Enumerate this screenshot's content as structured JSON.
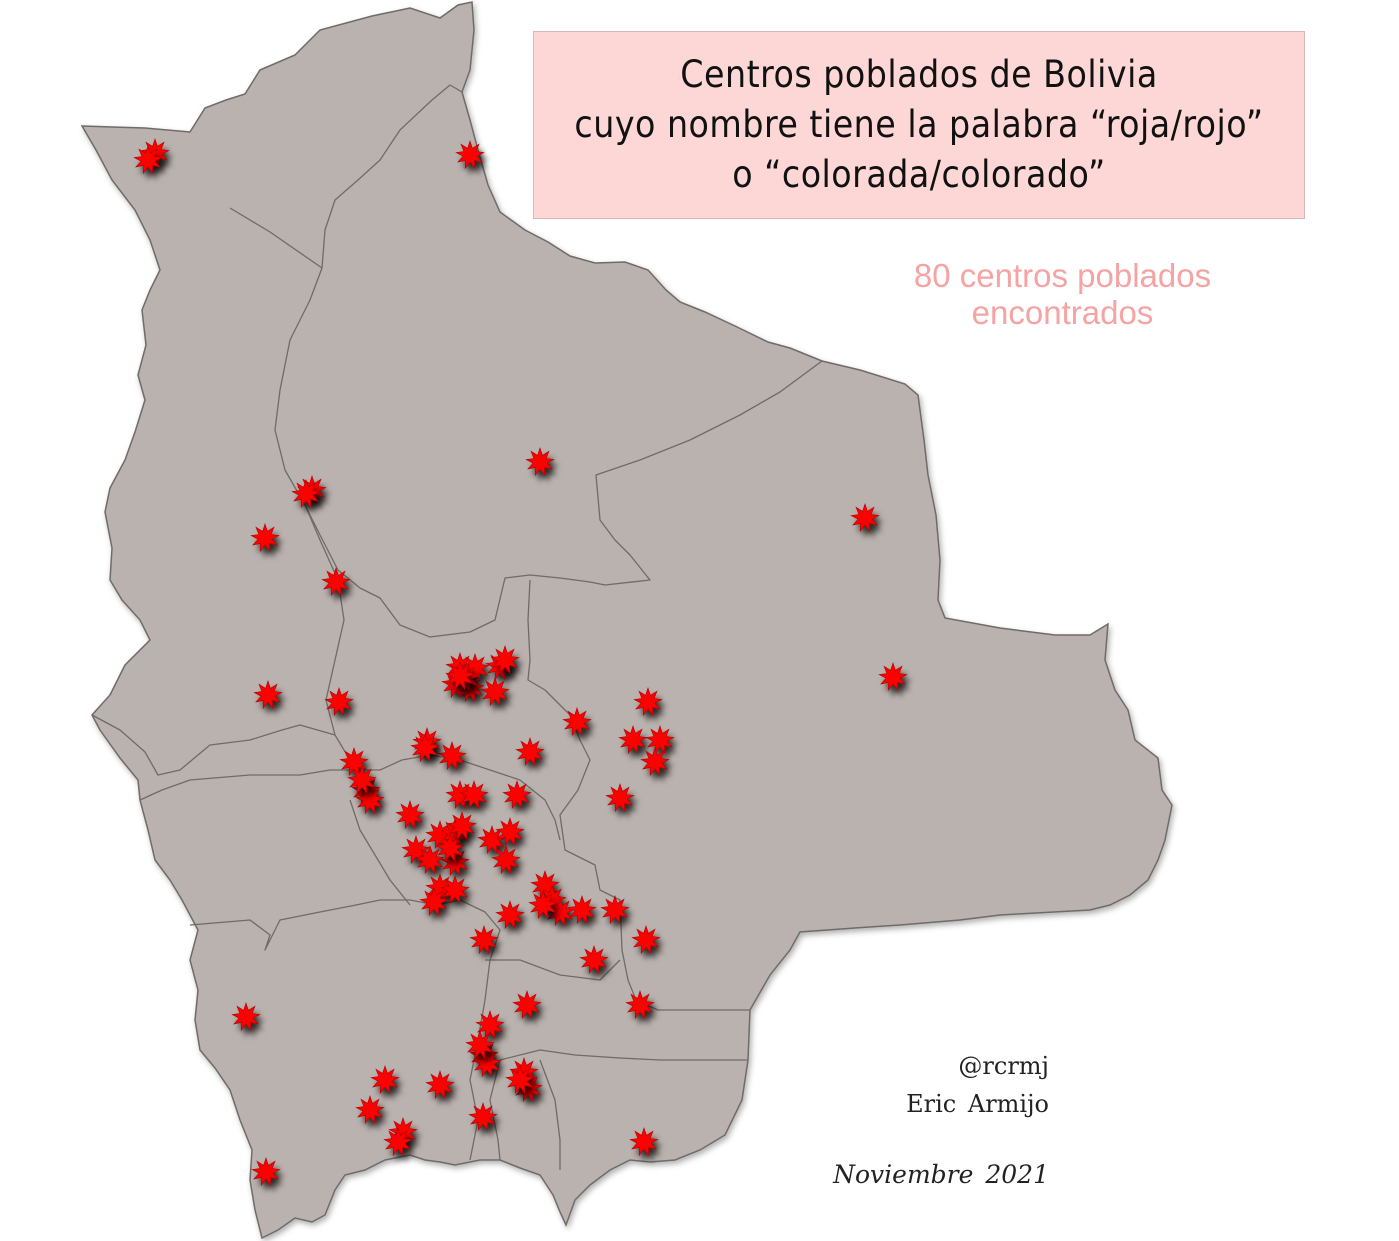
{
  "title": {
    "line1": "Centros poblados de Bolivia",
    "line2": "cuyo nombre tiene la palabra “roja/rojo”",
    "line3": "o “colorada/colorado”"
  },
  "subtitle": {
    "line1": "80 centros poblados",
    "line2": "encontrados"
  },
  "credits": {
    "handle": "@rcrmj",
    "author": "Eric Armijo",
    "date": "Noviembre 2021"
  },
  "colors": {
    "land": "#bab2ae",
    "border": "#6f6b69",
    "marker": "#ff0000",
    "title_bg": "#fdd6d6",
    "count_text": "#f5a3a3"
  },
  "map": {
    "region": "Bolivia",
    "marker_icon": "red-star-burst-icon",
    "marker_count": 80
  }
}
